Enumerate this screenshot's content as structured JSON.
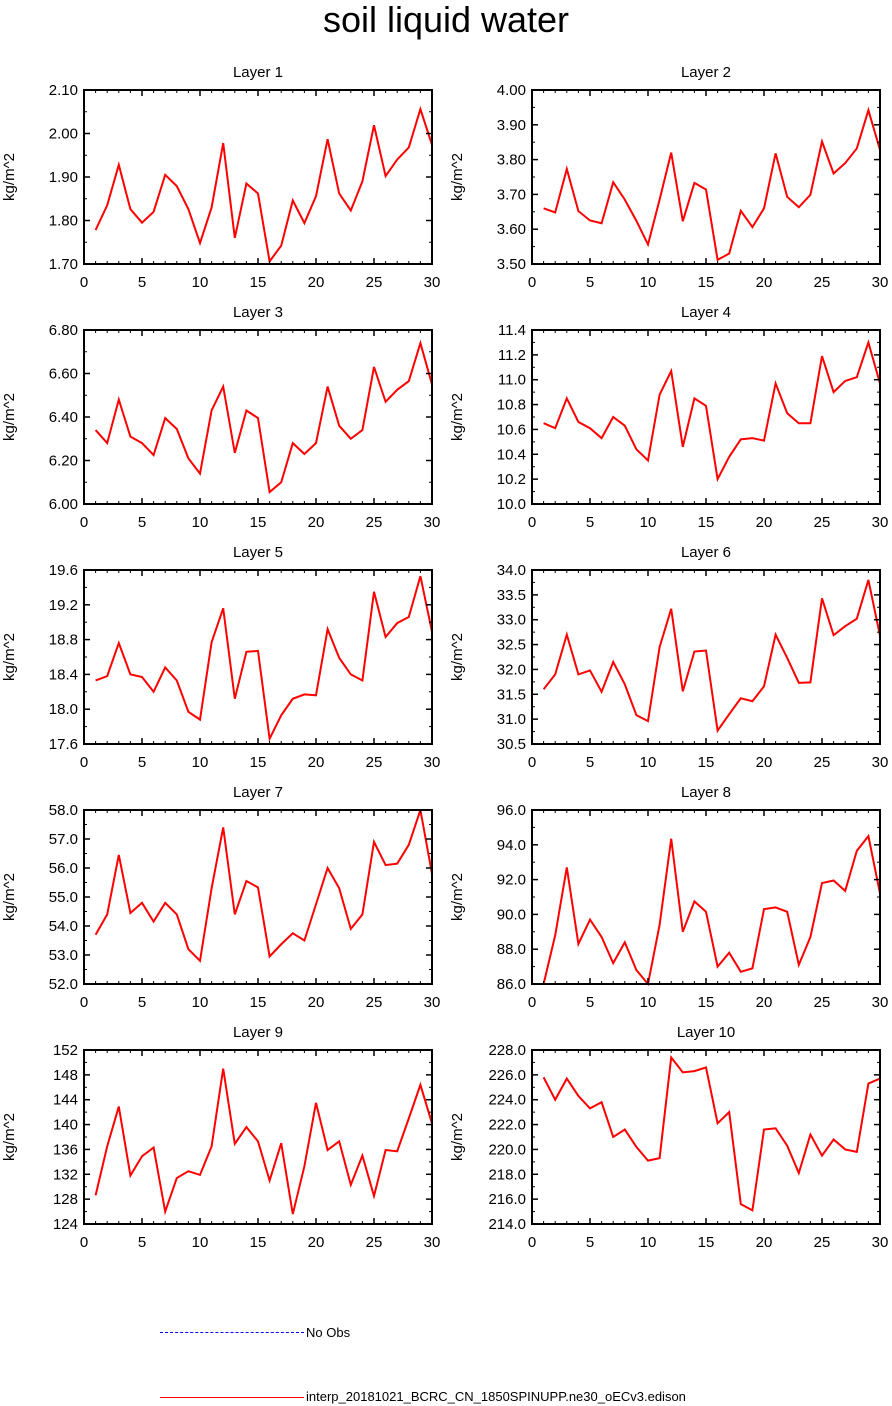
{
  "title": "soil liquid water",
  "colors": {
    "model_line": "#ff0000",
    "obs_line": "#0000ff",
    "axis": "#000000"
  },
  "legend": {
    "obs_label": "No Obs",
    "model_label": "interp_20181021_BCRC_CN_1850SPINUPP.ne30_oECv3.edison"
  },
  "chart_data": [
    {
      "type": "line",
      "title": "Layer 1",
      "ylabel": "kg/m^2",
      "xlim": [
        0,
        30
      ],
      "ylim": [
        1.7,
        2.1
      ],
      "xticks": [
        "0",
        "5",
        "10",
        "15",
        "20",
        "25",
        "30"
      ],
      "yticks": [
        "1.70",
        "1.80",
        "1.90",
        "2.00",
        "2.10"
      ],
      "x": [
        1,
        2,
        3,
        4,
        5,
        6,
        7,
        8,
        9,
        10,
        11,
        12,
        13,
        14,
        15,
        16,
        17,
        18,
        19,
        20,
        21,
        22,
        23,
        24,
        25,
        26,
        27,
        28,
        29,
        30
      ],
      "series": [
        {
          "name": "interp_20181021_BCRC_CN_1850SPINUPP.ne30_oECv3.edison",
          "values": [
            1.778,
            1.835,
            1.928,
            1.826,
            1.795,
            1.82,
            1.905,
            1.879,
            1.826,
            1.748,
            1.83,
            1.978,
            1.76,
            1.885,
            1.862,
            1.706,
            1.742,
            1.846,
            1.794,
            1.856,
            1.987,
            1.862,
            1.823,
            1.89,
            2.019,
            1.902,
            1.94,
            1.968,
            2.056,
            1.974
          ]
        }
      ]
    },
    {
      "type": "line",
      "title": "Layer 2",
      "ylabel": "kg/m^2",
      "xlim": [
        0,
        30
      ],
      "ylim": [
        3.5,
        4.0
      ],
      "xticks": [
        "0",
        "5",
        "10",
        "15",
        "20",
        "25",
        "30"
      ],
      "yticks": [
        "3.50",
        "3.60",
        "3.70",
        "3.80",
        "3.90",
        "4.00"
      ],
      "x": [
        1,
        2,
        3,
        4,
        5,
        6,
        7,
        8,
        9,
        10,
        11,
        12,
        13,
        14,
        15,
        16,
        17,
        18,
        19,
        20,
        21,
        22,
        23,
        24,
        25,
        26,
        27,
        28,
        29,
        30
      ],
      "series": [
        {
          "name": "interp_20181021_BCRC_CN_1850SPINUPP.ne30_oECv3.edison",
          "values": [
            3.66,
            3.648,
            3.773,
            3.652,
            3.625,
            3.617,
            3.735,
            3.685,
            3.624,
            3.556,
            3.685,
            3.82,
            3.623,
            3.733,
            3.714,
            3.512,
            3.53,
            3.653,
            3.606,
            3.66,
            3.818,
            3.693,
            3.663,
            3.699,
            3.852,
            3.76,
            3.79,
            3.832,
            3.942,
            3.828
          ]
        }
      ]
    },
    {
      "type": "line",
      "title": "Layer 3",
      "ylabel": "kg/m^2",
      "xlim": [
        0,
        30
      ],
      "ylim": [
        6.0,
        6.8
      ],
      "xticks": [
        "0",
        "5",
        "10",
        "15",
        "20",
        "25",
        "30"
      ],
      "yticks": [
        "6.00",
        "6.20",
        "6.40",
        "6.60",
        "6.80"
      ],
      "x": [
        1,
        2,
        3,
        4,
        5,
        6,
        7,
        8,
        9,
        10,
        11,
        12,
        13,
        14,
        15,
        16,
        17,
        18,
        19,
        20,
        21,
        22,
        23,
        24,
        25,
        26,
        27,
        28,
        29,
        30
      ],
      "series": [
        {
          "name": "interp_20181021_BCRC_CN_1850SPINUPP.ne30_oECv3.edison",
          "values": [
            6.34,
            6.28,
            6.48,
            6.31,
            6.28,
            6.225,
            6.395,
            6.345,
            6.21,
            6.14,
            6.43,
            6.54,
            6.235,
            6.43,
            6.395,
            6.055,
            6.1,
            6.28,
            6.23,
            6.28,
            6.54,
            6.36,
            6.3,
            6.34,
            6.63,
            6.47,
            6.525,
            6.565,
            6.74,
            6.55
          ]
        }
      ]
    },
    {
      "type": "line",
      "title": "Layer 4",
      "ylabel": "kg/m^2",
      "xlim": [
        0,
        30
      ],
      "ylim": [
        10.0,
        11.4
      ],
      "xticks": [
        "0",
        "5",
        "10",
        "15",
        "20",
        "25",
        "30"
      ],
      "yticks": [
        "10.0",
        "10.2",
        "10.4",
        "10.6",
        "10.8",
        "11.0",
        "11.2",
        "11.4"
      ],
      "x": [
        1,
        2,
        3,
        4,
        5,
        6,
        7,
        8,
        9,
        10,
        11,
        12,
        13,
        14,
        15,
        16,
        17,
        18,
        19,
        20,
        21,
        22,
        23,
        24,
        25,
        26,
        27,
        28,
        29,
        30
      ],
      "series": [
        {
          "name": "interp_20181021_BCRC_CN_1850SPINUPP.ne30_oECv3.edison",
          "values": [
            10.65,
            10.61,
            10.85,
            10.66,
            10.61,
            10.53,
            10.7,
            10.63,
            10.44,
            10.35,
            10.88,
            11.07,
            10.46,
            10.85,
            10.79,
            10.2,
            10.38,
            10.52,
            10.53,
            10.51,
            10.97,
            10.73,
            10.65,
            10.65,
            11.19,
            10.9,
            10.99,
            11.02,
            11.3,
            10.97
          ]
        }
      ]
    },
    {
      "type": "line",
      "title": "Layer 5",
      "ylabel": "kg/m^2",
      "xlim": [
        0,
        30
      ],
      "ylim": [
        17.6,
        19.6
      ],
      "xticks": [
        "0",
        "5",
        "10",
        "15",
        "20",
        "25",
        "30"
      ],
      "yticks": [
        "17.6",
        "18.0",
        "18.4",
        "18.8",
        "19.2",
        "19.6"
      ],
      "x": [
        1,
        2,
        3,
        4,
        5,
        6,
        7,
        8,
        9,
        10,
        11,
        12,
        13,
        14,
        15,
        16,
        17,
        18,
        19,
        20,
        21,
        22,
        23,
        24,
        25,
        26,
        27,
        28,
        29,
        30
      ],
      "series": [
        {
          "name": "interp_20181021_BCRC_CN_1850SPINUPP.ne30_oECv3.edison",
          "values": [
            18.33,
            18.38,
            18.76,
            18.4,
            18.37,
            18.2,
            18.48,
            18.33,
            17.97,
            17.88,
            18.77,
            19.16,
            18.12,
            18.66,
            18.67,
            17.66,
            17.93,
            18.12,
            18.17,
            18.16,
            18.92,
            18.59,
            18.4,
            18.33,
            19.35,
            18.83,
            18.99,
            19.06,
            19.53,
            18.89
          ]
        }
      ]
    },
    {
      "type": "line",
      "title": "Layer 6",
      "ylabel": "kg/m^2",
      "xlim": [
        0,
        30
      ],
      "ylim": [
        30.5,
        34.0
      ],
      "xticks": [
        "0",
        "5",
        "10",
        "15",
        "20",
        "25",
        "30"
      ],
      "yticks": [
        "30.5",
        "31.0",
        "31.5",
        "32.0",
        "32.5",
        "33.0",
        "33.5",
        "34.0"
      ],
      "x": [
        1,
        2,
        3,
        4,
        5,
        6,
        7,
        8,
        9,
        10,
        11,
        12,
        13,
        14,
        15,
        16,
        17,
        18,
        19,
        20,
        21,
        22,
        23,
        24,
        25,
        26,
        27,
        28,
        29,
        30
      ],
      "series": [
        {
          "name": "interp_20181021_BCRC_CN_1850SPINUPP.ne30_oECv3.edison",
          "values": [
            31.6,
            31.9,
            32.7,
            31.9,
            31.98,
            31.55,
            32.15,
            31.7,
            31.08,
            30.96,
            32.45,
            33.22,
            31.56,
            32.36,
            32.38,
            30.77,
            31.1,
            31.42,
            31.36,
            31.66,
            32.7,
            32.23,
            31.73,
            31.74,
            33.43,
            32.69,
            32.87,
            33.02,
            33.8,
            32.68
          ]
        }
      ]
    },
    {
      "type": "line",
      "title": "Layer 7",
      "ylabel": "kg/m^2",
      "xlim": [
        0,
        30
      ],
      "ylim": [
        52.0,
        58.0
      ],
      "xticks": [
        "0",
        "5",
        "10",
        "15",
        "20",
        "25",
        "30"
      ],
      "yticks": [
        "52.0",
        "53.0",
        "54.0",
        "55.0",
        "56.0",
        "57.0",
        "58.0"
      ],
      "x": [
        1,
        2,
        3,
        4,
        5,
        6,
        7,
        8,
        9,
        10,
        11,
        12,
        13,
        14,
        15,
        16,
        17,
        18,
        19,
        20,
        21,
        22,
        23,
        24,
        25,
        26,
        27,
        28,
        29,
        30
      ],
      "series": [
        {
          "name": "interp_20181021_BCRC_CN_1850SPINUPP.ne30_oECv3.edison",
          "values": [
            53.7,
            54.4,
            56.45,
            54.45,
            54.8,
            54.15,
            54.8,
            54.4,
            53.2,
            52.8,
            55.3,
            57.4,
            54.4,
            55.55,
            55.33,
            52.95,
            53.37,
            53.75,
            53.5,
            54.75,
            56.0,
            55.3,
            53.9,
            54.4,
            56.9,
            56.1,
            56.15,
            56.8,
            58.0,
            55.8
          ]
        }
      ]
    },
    {
      "type": "line",
      "title": "Layer 8",
      "ylabel": "kg/m^2",
      "xlim": [
        0,
        30
      ],
      "ylim": [
        86.0,
        96.0
      ],
      "xticks": [
        "0",
        "5",
        "10",
        "15",
        "20",
        "25",
        "30"
      ],
      "yticks": [
        "86.0",
        "88.0",
        "90.0",
        "92.0",
        "94.0",
        "96.0"
      ],
      "x": [
        1,
        2,
        3,
        4,
        5,
        6,
        7,
        8,
        9,
        10,
        11,
        12,
        13,
        14,
        15,
        16,
        17,
        18,
        19,
        20,
        21,
        22,
        23,
        24,
        25,
        26,
        27,
        28,
        29,
        30
      ],
      "series": [
        {
          "name": "interp_20181021_BCRC_CN_1850SPINUPP.ne30_oECv3.edison",
          "values": [
            86.0,
            88.8,
            92.7,
            88.3,
            89.7,
            88.7,
            87.2,
            88.4,
            86.8,
            86.0,
            89.4,
            94.35,
            89.0,
            90.75,
            90.15,
            87.0,
            87.8,
            86.7,
            86.9,
            90.3,
            90.4,
            90.15,
            87.1,
            88.7,
            91.8,
            91.95,
            91.35,
            93.65,
            94.5,
            91.2
          ]
        }
      ]
    },
    {
      "type": "line",
      "title": "Layer 9",
      "ylabel": "kg/m^2",
      "xlim": [
        0,
        30
      ],
      "ylim": [
        124,
        152
      ],
      "xticks": [
        "0",
        "5",
        "10",
        "15",
        "20",
        "25",
        "30"
      ],
      "yticks": [
        "124",
        "128",
        "132",
        "136",
        "140",
        "144",
        "148",
        "152"
      ],
      "x": [
        1,
        2,
        3,
        4,
        5,
        6,
        7,
        8,
        9,
        10,
        11,
        12,
        13,
        14,
        15,
        16,
        17,
        18,
        19,
        20,
        21,
        22,
        23,
        24,
        25,
        26,
        27,
        28,
        29,
        30
      ],
      "series": [
        {
          "name": "interp_20181021_BCRC_CN_1850SPINUPP.ne30_oECv3.edison",
          "values": [
            128.6,
            136.5,
            142.9,
            131.8,
            134.9,
            136.3,
            126.0,
            131.4,
            132.5,
            131.9,
            136.5,
            149.0,
            136.9,
            139.6,
            137.3,
            131.0,
            137.0,
            125.6,
            133.3,
            143.5,
            135.9,
            137.3,
            130.3,
            135.0,
            128.5,
            135.9,
            135.7,
            141.0,
            146.4,
            140.2
          ]
        }
      ]
    },
    {
      "type": "line",
      "title": "Layer 10",
      "ylabel": "kg/m^2",
      "xlim": [
        0,
        30
      ],
      "ylim": [
        214.0,
        228.0
      ],
      "xticks": [
        "0",
        "5",
        "10",
        "15",
        "20",
        "25",
        "30"
      ],
      "yticks": [
        "214.0",
        "216.0",
        "218.0",
        "220.0",
        "222.0",
        "224.0",
        "226.0",
        "228.0"
      ],
      "x": [
        1,
        2,
        3,
        4,
        5,
        6,
        7,
        8,
        9,
        10,
        11,
        12,
        13,
        14,
        15,
        16,
        17,
        18,
        19,
        20,
        21,
        22,
        23,
        24,
        25,
        26,
        27,
        28,
        29,
        30
      ],
      "series": [
        {
          "name": "interp_20181021_BCRC_CN_1850SPINUPP.ne30_oECv3.edison",
          "values": [
            225.8,
            224.0,
            225.7,
            224.3,
            223.3,
            223.8,
            221.0,
            221.6,
            220.2,
            219.1,
            219.3,
            227.4,
            226.2,
            226.3,
            226.6,
            222.1,
            223.0,
            215.6,
            215.1,
            221.6,
            221.7,
            220.3,
            218.1,
            221.2,
            219.5,
            220.8,
            220.0,
            219.8,
            225.3,
            225.7
          ]
        }
      ]
    }
  ]
}
